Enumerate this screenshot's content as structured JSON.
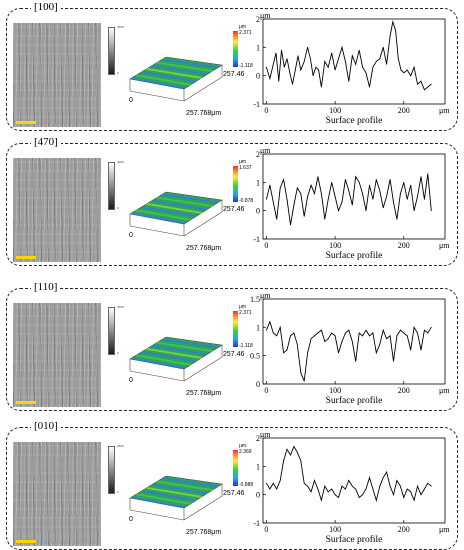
{
  "panels": [
    {
      "label": "[100]",
      "grayscale_max": "4000",
      "grayscale_min": "0",
      "colorbar_unit": "μm",
      "colorbar_max": "2.371",
      "colorbar_min": "-1.118",
      "dim_y": "257.46",
      "dim_x": "257.768μm",
      "origin": "0"
    },
    {
      "label": "[470]",
      "grayscale_max": "4000",
      "grayscale_min": "0",
      "colorbar_unit": "μm",
      "colorbar_max": "1.637",
      "colorbar_min": "-0.878",
      "dim_y": "257.46",
      "dim_x": "257.768μm",
      "origin": "0"
    },
    {
      "label": "[110]",
      "grayscale_max": "4000",
      "grayscale_min": "0",
      "colorbar_unit": "μm",
      "colorbar_max": "2.371",
      "colorbar_min": "-1.118",
      "dim_y": "257.46",
      "dim_x": "257.768μm",
      "origin": "0"
    },
    {
      "label": "[010]",
      "grayscale_max": "4000",
      "grayscale_min": "0",
      "colorbar_unit": "μm",
      "colorbar_max": "2.369",
      "colorbar_min": "-0.888",
      "dim_y": "257.46",
      "dim_x": "257.768μm",
      "origin": "0"
    }
  ],
  "chart_data": [
    {
      "type": "line",
      "panel": "[100]",
      "xlabel": "Surface profile",
      "x_unit": "μm",
      "y_unit": "μm",
      "ylim": [
        -1,
        2
      ],
      "xlim": [
        -5,
        260
      ],
      "yticks": [
        "2",
        "1",
        "0",
        "-1"
      ],
      "xticks": [
        "0",
        "100",
        "200"
      ],
      "xtick_values": [
        0,
        100,
        200
      ],
      "x": [
        0,
        5,
        10,
        14,
        18,
        22,
        26,
        30,
        34,
        38,
        42,
        46,
        50,
        55,
        60,
        64,
        68,
        72,
        76,
        80,
        85,
        90,
        95,
        100,
        105,
        110,
        115,
        120,
        125,
        130,
        135,
        140,
        145,
        150,
        155,
        160,
        165,
        170,
        175,
        180,
        184,
        188,
        192,
        196,
        200,
        205,
        210,
        215,
        220,
        225,
        230,
        235,
        240
      ],
      "y": [
        0.3,
        -0.1,
        0.4,
        0.8,
        -0.2,
        0.9,
        0.3,
        0.6,
        0.1,
        -0.3,
        0.2,
        0.7,
        0.2,
        0.5,
        1.0,
        0.6,
        0.0,
        0.3,
        0.2,
        -0.4,
        0.5,
        0.3,
        0.8,
        0.2,
        0.6,
        1.0,
        0.5,
        -0.2,
        0.7,
        0.4,
        0.9,
        0.3,
        0.1,
        -0.4,
        0.3,
        0.5,
        0.6,
        1.0,
        0.4,
        1.4,
        1.9,
        1.6,
        0.6,
        0.2,
        0.1,
        0.2,
        0.0,
        0.3,
        -0.3,
        -0.2,
        -0.5,
        -0.4,
        -0.3
      ]
    },
    {
      "type": "line",
      "panel": "[470]",
      "xlabel": "Surface profile",
      "x_unit": "μm",
      "y_unit": "μm",
      "ylim": [
        -1,
        2
      ],
      "xlim": [
        -5,
        260
      ],
      "yticks": [
        "2",
        "1",
        "0",
        "-1"
      ],
      "xticks": [
        "0",
        "100",
        "200"
      ],
      "xtick_values": [
        0,
        100,
        200
      ],
      "x": [
        0,
        5,
        10,
        15,
        20,
        25,
        30,
        35,
        40,
        45,
        50,
        55,
        60,
        65,
        70,
        75,
        80,
        85,
        90,
        95,
        100,
        105,
        110,
        115,
        120,
        125,
        130,
        135,
        140,
        145,
        150,
        155,
        160,
        165,
        170,
        175,
        180,
        185,
        190,
        195,
        200,
        205,
        210,
        215,
        220,
        225,
        230,
        235,
        240
      ],
      "y": [
        0.4,
        0.9,
        0.3,
        -0.3,
        0.8,
        1.1,
        0.4,
        -0.5,
        0.2,
        0.8,
        0.6,
        -0.2,
        0.5,
        0.9,
        0.6,
        1.2,
        0.6,
        -0.3,
        0.4,
        1.0,
        0.5,
        0.0,
        0.3,
        1.1,
        0.7,
        0.2,
        1.2,
        1.0,
        0.6,
        0.0,
        0.9,
        0.4,
        1.1,
        0.7,
        0.1,
        0.5,
        1.1,
        0.3,
        -0.3,
        0.6,
        1.0,
        0.4,
        0.9,
        0.0,
        0.5,
        1.2,
        0.4,
        1.3,
        0.0
      ]
    },
    {
      "type": "line",
      "panel": "[110]",
      "xlabel": "Surface profile",
      "x_unit": "μm",
      "y_unit": "μm",
      "ylim": [
        0,
        1.5
      ],
      "xlim": [
        -5,
        260
      ],
      "yticks": [
        "1.5",
        "1",
        "0.5",
        "0"
      ],
      "xticks": [
        "0",
        "100",
        "200"
      ],
      "xtick_values": [
        0,
        100,
        200
      ],
      "x": [
        0,
        5,
        10,
        15,
        20,
        25,
        30,
        35,
        40,
        45,
        50,
        55,
        60,
        65,
        70,
        75,
        80,
        85,
        90,
        95,
        100,
        105,
        110,
        115,
        120,
        125,
        130,
        135,
        140,
        145,
        150,
        155,
        160,
        165,
        170,
        175,
        180,
        185,
        190,
        195,
        200,
        205,
        210,
        215,
        220,
        225,
        230,
        235,
        240
      ],
      "y": [
        0.95,
        1.1,
        0.9,
        0.85,
        1.0,
        0.55,
        0.6,
        0.85,
        0.9,
        0.7,
        0.2,
        0.05,
        0.55,
        0.8,
        0.85,
        0.9,
        0.95,
        0.75,
        0.8,
        0.9,
        0.85,
        0.55,
        0.75,
        0.9,
        0.95,
        0.75,
        0.4,
        0.9,
        0.85,
        0.95,
        0.85,
        0.9,
        0.55,
        0.7,
        0.95,
        0.8,
        0.85,
        0.4,
        0.85,
        0.95,
        0.9,
        0.85,
        0.6,
        1.0,
        0.9,
        0.6,
        0.95,
        0.9,
        1.0
      ]
    },
    {
      "type": "line",
      "panel": "[010]",
      "xlabel": "Surface profile",
      "x_unit": "μm",
      "y_unit": "μm",
      "ylim": [
        -1,
        2
      ],
      "xlim": [
        -5,
        260
      ],
      "yticks": [
        "2",
        "1",
        "0",
        "-1"
      ],
      "xticks": [
        "0",
        "100",
        "200"
      ],
      "xtick_values": [
        0,
        100,
        200
      ],
      "x": [
        0,
        5,
        10,
        15,
        20,
        25,
        30,
        35,
        40,
        45,
        50,
        55,
        60,
        65,
        70,
        75,
        80,
        85,
        90,
        95,
        100,
        105,
        110,
        115,
        120,
        125,
        130,
        135,
        140,
        145,
        150,
        155,
        160,
        165,
        170,
        175,
        180,
        185,
        190,
        195,
        200,
        205,
        210,
        215,
        220,
        225,
        230,
        235,
        240
      ],
      "y": [
        0.4,
        0.2,
        0.4,
        0.2,
        0.5,
        1.2,
        1.6,
        1.4,
        1.7,
        1.5,
        1.2,
        0.4,
        0.3,
        0.1,
        0.5,
        0.2,
        -0.2,
        0.3,
        0.1,
        0.2,
        0.0,
        -0.1,
        0.3,
        0.2,
        0.5,
        0.3,
        0.2,
        -0.1,
        0.0,
        0.2,
        0.6,
        0.2,
        -0.2,
        0.3,
        0.6,
        0.8,
        0.3,
        0.0,
        0.5,
        0.3,
        -0.1,
        0.2,
        0.1,
        -0.2,
        0.3,
        0.0,
        0.2,
        0.4,
        0.3
      ]
    }
  ]
}
